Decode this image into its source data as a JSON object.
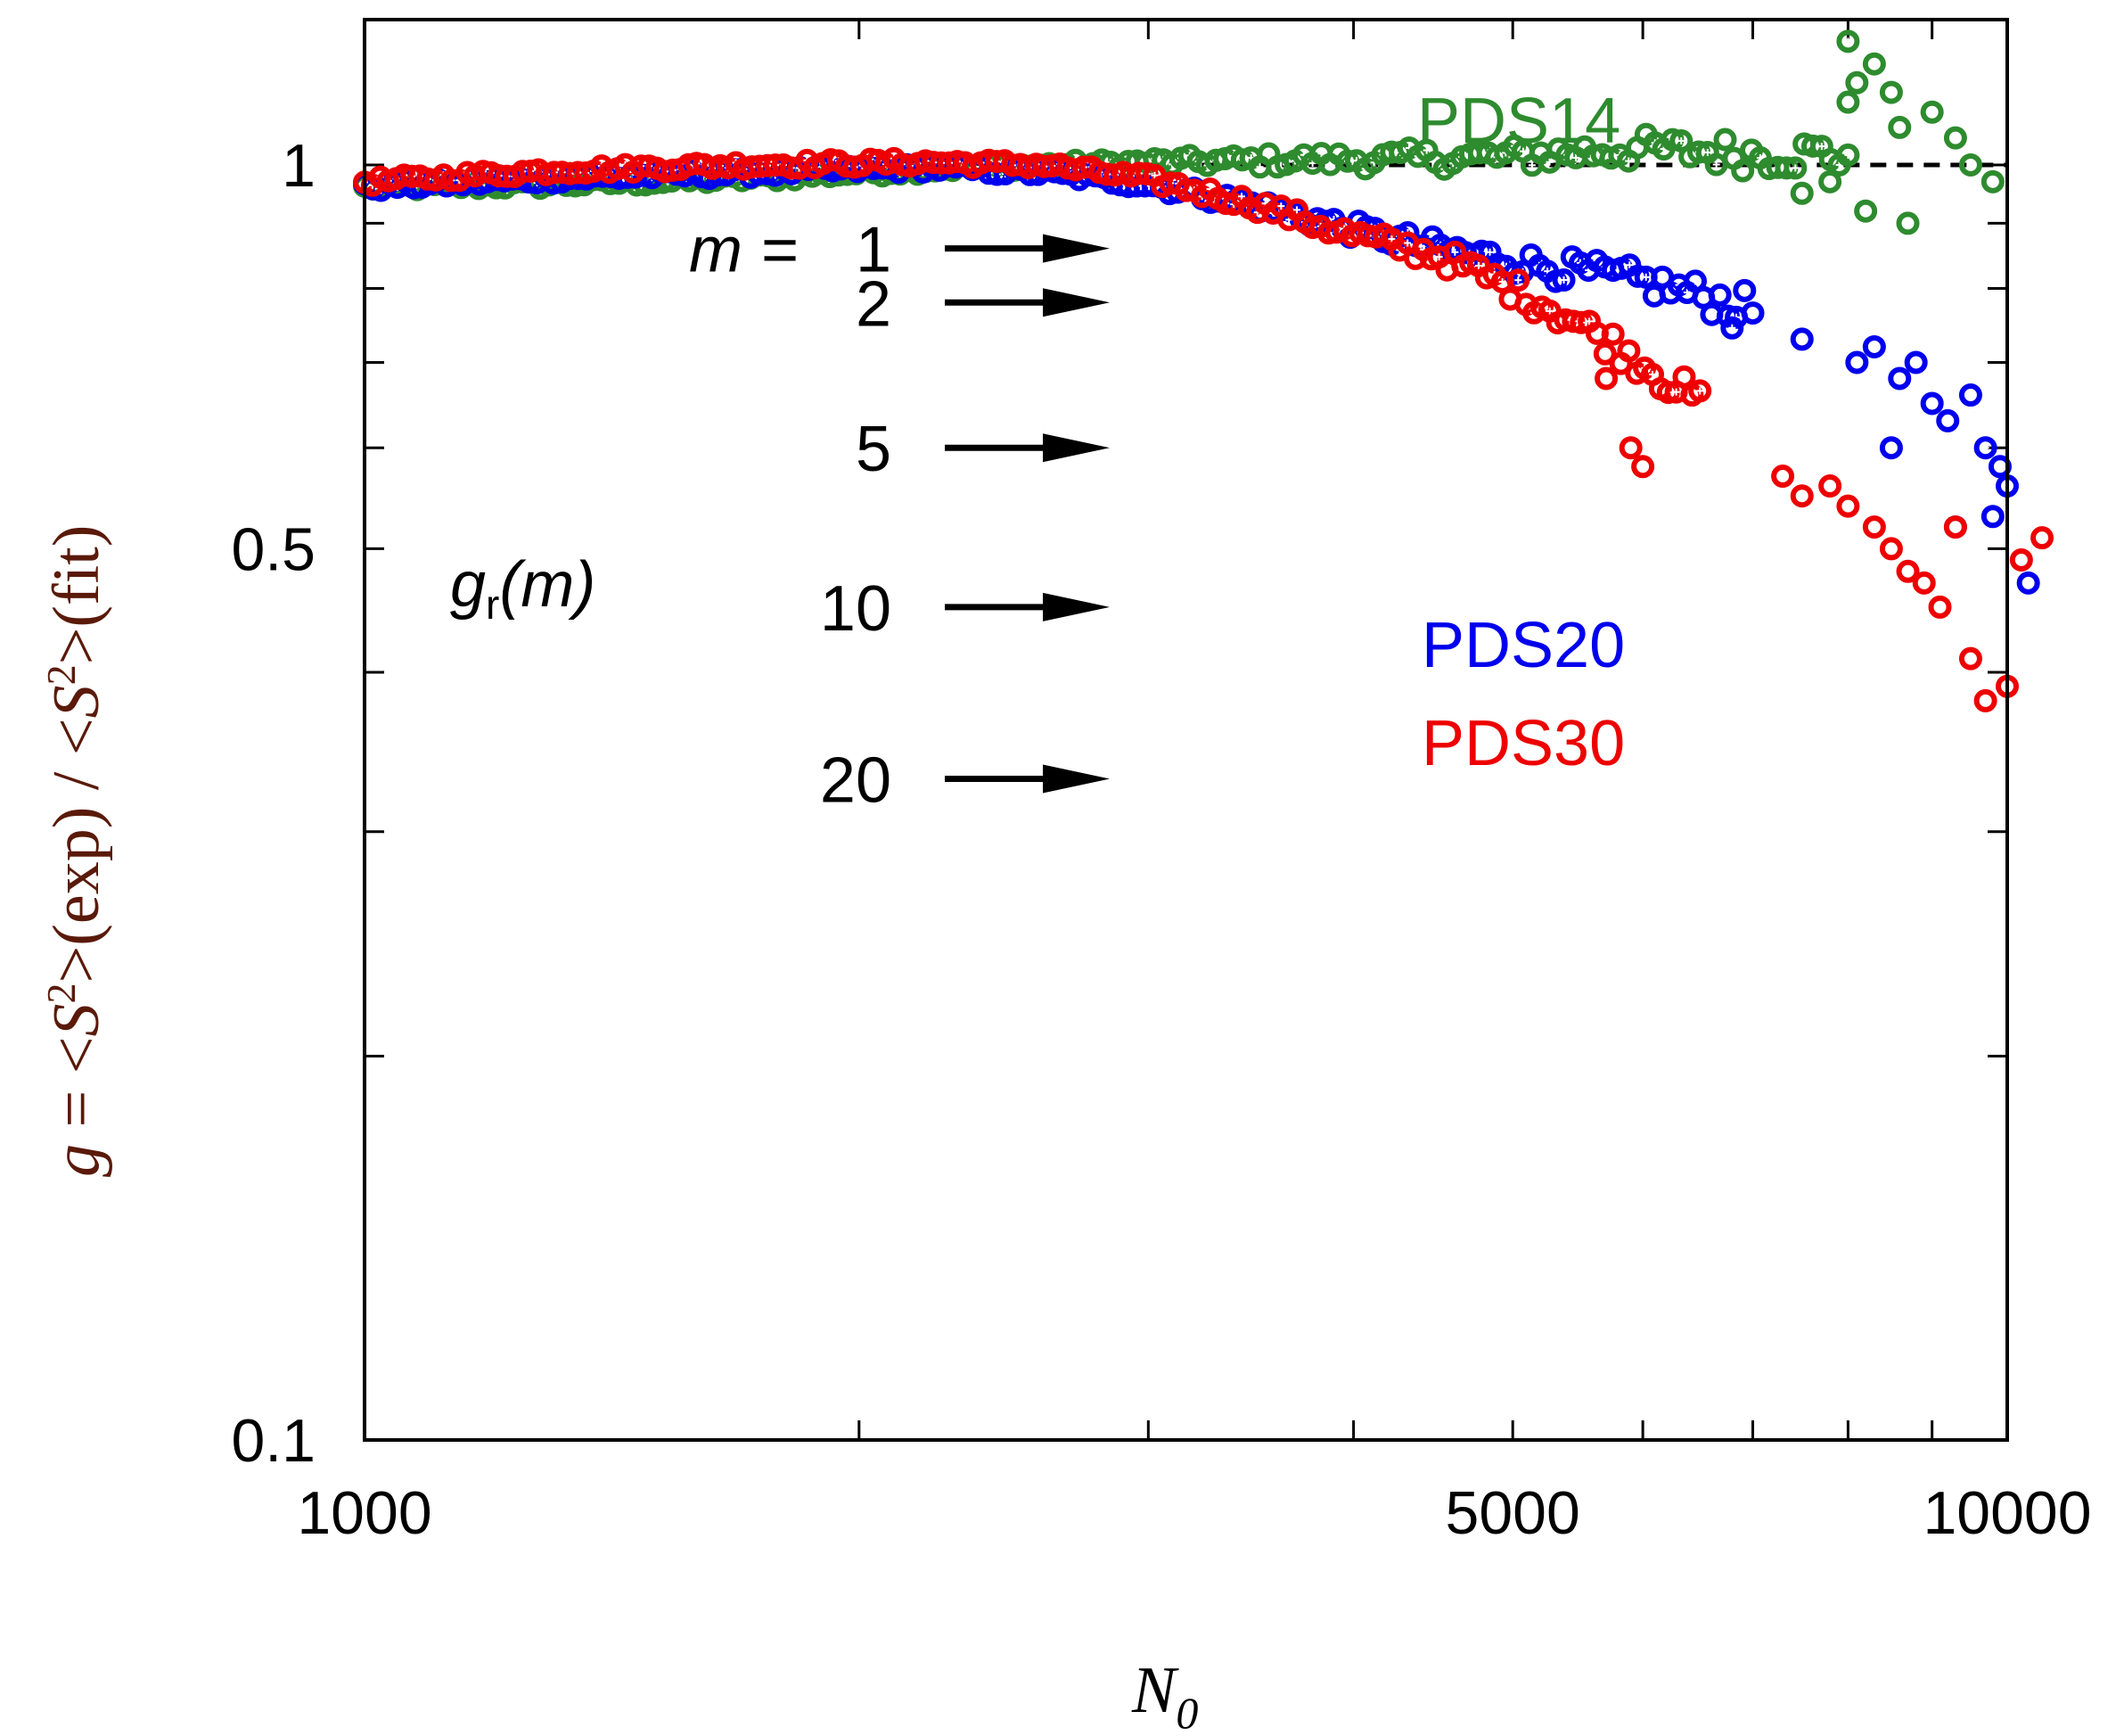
{
  "chart_data": {
    "type": "scatter",
    "xlabel": "N0",
    "ylabel": "g = <S2>(exp) / <S2>(fit)",
    "xscale": "log",
    "yscale": "log",
    "xlim": [
      1000,
      10000
    ],
    "ylim": [
      0.1,
      1.3
    ],
    "x_ticks": [
      {
        "value": 1000,
        "label": "1000"
      },
      {
        "value": 2000,
        "label": ""
      },
      {
        "value": 3000,
        "label": ""
      },
      {
        "value": 4000,
        "label": ""
      },
      {
        "value": 5000,
        "label": "5000"
      },
      {
        "value": 6000,
        "label": ""
      },
      {
        "value": 7000,
        "label": ""
      },
      {
        "value": 8000,
        "label": ""
      },
      {
        "value": 9000,
        "label": ""
      },
      {
        "value": 10000,
        "label": "10000"
      }
    ],
    "y_ticks": [
      {
        "value": 0.1,
        "label": "0.1"
      },
      {
        "value": 0.2,
        "label": ""
      },
      {
        "value": 0.3,
        "label": ""
      },
      {
        "value": 0.4,
        "label": ""
      },
      {
        "value": 0.5,
        "label": "0.5"
      },
      {
        "value": 0.6,
        "label": ""
      },
      {
        "value": 0.7,
        "label": ""
      },
      {
        "value": 0.8,
        "label": ""
      },
      {
        "value": 0.9,
        "label": ""
      },
      {
        "value": 1.0,
        "label": "1"
      }
    ],
    "reference_line": {
      "y": 1.0,
      "from_x": 3000,
      "to_x": 10000,
      "style": "dashed"
    },
    "series": [
      {
        "name": "PDS14",
        "color": "#2e8b2e",
        "trend": [
          [
            1000,
            0.96
          ],
          [
            1300,
            0.965
          ],
          [
            1700,
            0.975
          ],
          [
            2300,
            0.995
          ],
          [
            3000,
            1.005
          ],
          [
            4000,
            1.01
          ],
          [
            5000,
            1.015
          ],
          [
            6000,
            1.03
          ],
          [
            7000,
            1.02
          ],
          [
            8000,
            1.02
          ]
        ],
        "extra_points": [
          [
            8000,
            1.25
          ],
          [
            8300,
            1.2
          ],
          [
            8100,
            1.16
          ],
          [
            8000,
            1.12
          ],
          [
            8500,
            1.14
          ],
          [
            9000,
            1.1
          ],
          [
            9300,
            1.05
          ],
          [
            9500,
            1.0
          ],
          [
            9800,
            0.97
          ],
          [
            8200,
            0.92
          ],
          [
            8700,
            0.9
          ],
          [
            7500,
            0.95
          ],
          [
            7800,
            0.97
          ],
          [
            8600,
            1.07
          ]
        ]
      },
      {
        "name": "PDS20",
        "color": "#0000ee",
        "trend": [
          [
            1000,
            0.96
          ],
          [
            1300,
            0.975
          ],
          [
            1700,
            0.985
          ],
          [
            2200,
            0.995
          ],
          [
            2600,
            0.985
          ],
          [
            3000,
            0.965
          ],
          [
            3500,
            0.93
          ],
          [
            4000,
            0.89
          ],
          [
            4500,
            0.86
          ],
          [
            5000,
            0.84
          ],
          [
            5500,
            0.825
          ],
          [
            6000,
            0.81
          ],
          [
            6500,
            0.79
          ],
          [
            7000,
            0.77
          ]
        ],
        "extra_points": [
          [
            6800,
            0.745
          ],
          [
            7500,
            0.73
          ],
          [
            8100,
            0.7
          ],
          [
            8300,
            0.72
          ],
          [
            8600,
            0.68
          ],
          [
            8800,
            0.7
          ],
          [
            9000,
            0.65
          ],
          [
            9200,
            0.63
          ],
          [
            9500,
            0.66
          ],
          [
            9700,
            0.6
          ],
          [
            9900,
            0.58
          ],
          [
            10000,
            0.56
          ],
          [
            8500,
            0.6
          ],
          [
            9300,
            0.52
          ],
          [
            9800,
            0.53
          ],
          [
            10300,
            0.47
          ]
        ]
      },
      {
        "name": "PDS30",
        "color": "#ee0000",
        "trend": [
          [
            1000,
            0.97
          ],
          [
            1300,
            0.99
          ],
          [
            1700,
            1.0
          ],
          [
            2200,
            1.005
          ],
          [
            2600,
            1.0
          ],
          [
            3000,
            0.975
          ],
          [
            3500,
            0.93
          ],
          [
            4000,
            0.88
          ],
          [
            4500,
            0.85
          ],
          [
            5000,
            0.8
          ],
          [
            5500,
            0.75
          ],
          [
            6000,
            0.7
          ],
          [
            6500,
            0.65
          ]
        ],
        "extra_points": [
          [
            5700,
            0.68
          ],
          [
            5900,
            0.6
          ],
          [
            6000,
            0.58
          ],
          [
            7300,
            0.57
          ],
          [
            7500,
            0.55
          ],
          [
            7800,
            0.56
          ],
          [
            8000,
            0.54
          ],
          [
            8300,
            0.52
          ],
          [
            8500,
            0.5
          ],
          [
            8700,
            0.48
          ],
          [
            8900,
            0.47
          ],
          [
            9100,
            0.45
          ],
          [
            9300,
            0.52
          ],
          [
            9500,
            0.41
          ],
          [
            9700,
            0.38
          ],
          [
            10000,
            0.39
          ],
          [
            10200,
            0.49
          ],
          [
            10500,
            0.51
          ]
        ]
      }
    ],
    "annotations": {
      "m_prefix": "m = ",
      "gr_label_g": "g",
      "gr_label_sub": "r",
      "gr_label_rest": "(m)",
      "arrows": [
        {
          "label": "1",
          "y": 0.86
        },
        {
          "label": "2",
          "y": 0.78
        },
        {
          "label": "5",
          "y": 0.6
        },
        {
          "label": "10",
          "y": 0.45
        },
        {
          "label": "20",
          "y": 0.33
        }
      ]
    },
    "axis_titles": {
      "x_main": "N",
      "x_sub": "0",
      "y_g": "g",
      "y_eq": " = <",
      "y_S": "S",
      "y_sup": "2",
      "y_mid1": ">(exp) / <",
      "y_mid2": ">(fit)"
    },
    "colors": {
      "axis_title": "#5a1a0a",
      "axes": "#000000",
      "arrow": "#000000"
    }
  }
}
